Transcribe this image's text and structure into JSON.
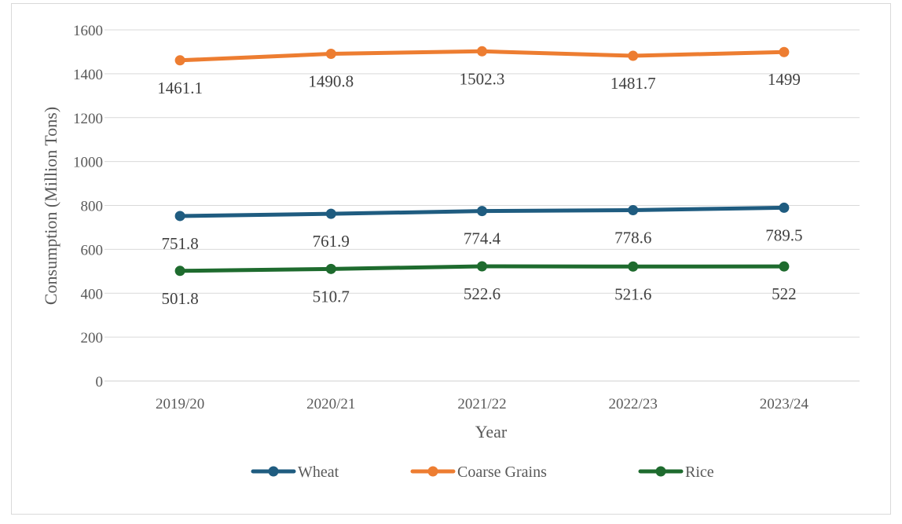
{
  "chart_data": {
    "type": "line",
    "title": "",
    "xlabel": "Year",
    "ylabel": "Consumption (Million Tons)",
    "categories": [
      "2019/20",
      "2020/21",
      "2021/22",
      "2022/23",
      "2023/24"
    ],
    "ylim": [
      0,
      1600
    ],
    "yticks": [
      0,
      200,
      400,
      600,
      800,
      1000,
      1200,
      1400,
      1600
    ],
    "ytick_labels": [
      "0",
      "200",
      "400",
      "600",
      "800",
      "1000",
      "1200",
      "1400",
      "1600"
    ],
    "grid": "horizontal",
    "legend_position": "bottom",
    "series": [
      {
        "name": "Wheat",
        "color": "#1F5C80",
        "values": [
          751.8,
          761.9,
          774.4,
          778.6,
          789.5
        ],
        "labels": [
          "751.8",
          "761.9",
          "774.4",
          "778.6",
          "789.5"
        ]
      },
      {
        "name": "Coarse Grains",
        "color": "#ED7D31",
        "values": [
          1461.1,
          1490.8,
          1502.3,
          1481.7,
          1499
        ],
        "labels": [
          "1461.1",
          "1490.8",
          "1502.3",
          "1481.7",
          "1499"
        ]
      },
      {
        "name": "Rice",
        "color": "#1E6B2E",
        "values": [
          501.8,
          510.7,
          522.6,
          521.6,
          522
        ],
        "labels": [
          "501.8",
          "510.7",
          "522.6",
          "521.6",
          "522"
        ]
      }
    ]
  }
}
